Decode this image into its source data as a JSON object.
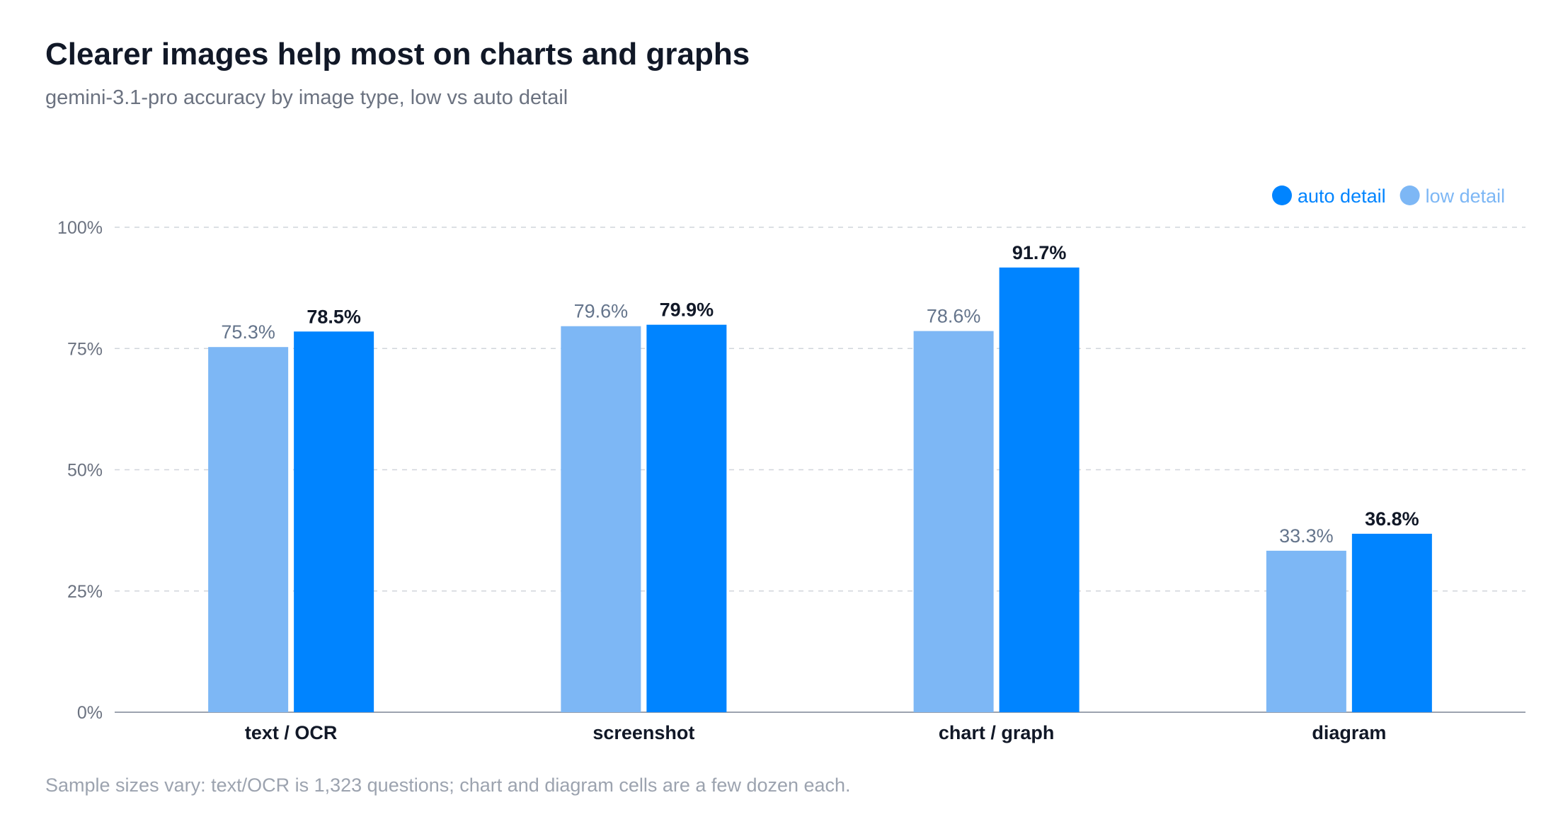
{
  "chart_data": {
    "type": "bar",
    "title": "Clearer images help most on charts and graphs",
    "subtitle": "gemini-3.1-pro accuracy by image type, low vs auto detail",
    "categories": [
      "text / OCR",
      "screenshot",
      "chart / graph",
      "diagram"
    ],
    "series": [
      {
        "name": "low detail",
        "values": [
          75.3,
          79.6,
          78.6,
          33.3
        ],
        "color": "#7db7f5",
        "label_color": "#64748b"
      },
      {
        "name": "auto detail",
        "values": [
          78.5,
          79.9,
          91.7,
          36.8
        ],
        "color": "#0084ff",
        "label_color": "#111827"
      }
    ],
    "value_labels": {
      "low detail": [
        "75.3%",
        "79.6%",
        "78.6%",
        "33.3%"
      ],
      "auto detail": [
        "78.5%",
        "79.9%",
        "91.7%",
        "36.8%"
      ]
    },
    "y_ticks": [
      0,
      25,
      50,
      75,
      100
    ],
    "y_tick_labels": [
      "0%",
      "25%",
      "50%",
      "75%",
      "100%"
    ],
    "ylim": [
      0,
      100
    ],
    "xlabel": "",
    "ylabel": "",
    "grid": true,
    "legend": {
      "placement": "top-right",
      "order": [
        "auto detail",
        "low detail"
      ]
    },
    "footnote": "Sample sizes vary: text/OCR is 1,323 questions; chart and diagram cells are a few dozen each."
  }
}
